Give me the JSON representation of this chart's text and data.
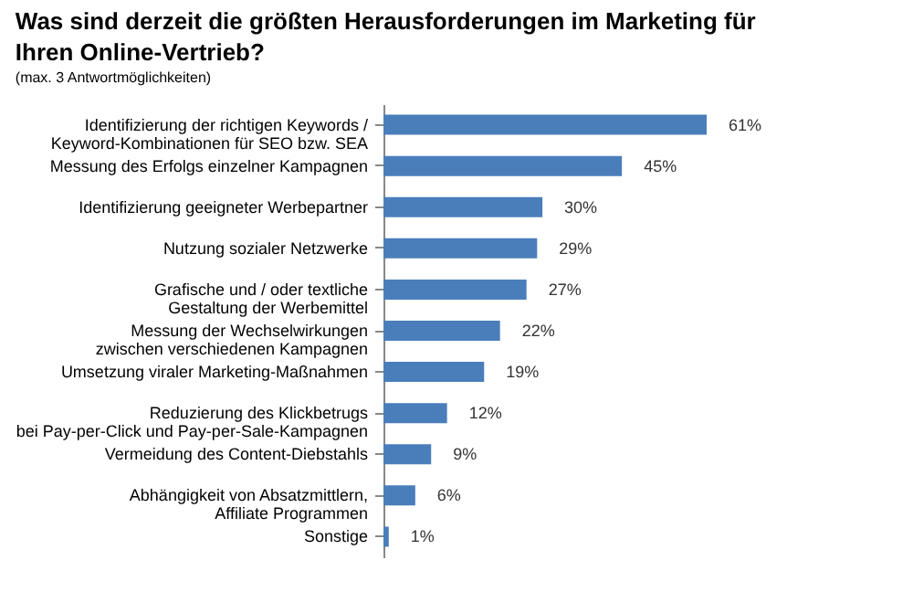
{
  "chart_data": {
    "type": "bar",
    "orientation": "horizontal",
    "title": "Was sind derzeit die größten Herausforderungen im Marketing für\nIhren Online-Vertrieb?",
    "subtitle": "(max. 3 Antwortmöglichkeiten)",
    "categories": [
      "Identifizierung der richtigen Keywords /\nKeyword-Kombinationen für SEO bzw. SEA",
      "Messung des Erfolgs einzelner Kampagnen",
      "Identifizierung geeigneter Werbepartner",
      "Nutzung sozialer Netzwerke",
      "Grafische und / oder textliche\nGestaltung der Werbemittel",
      "Messung der Wechselwirkungen\nzwischen verschiedenen Kampagnen",
      "Umsetzung viraler Marketing-Maßnahmen",
      "Reduzierung des Klickbetrugs\nbei Pay-per-Click und Pay-per-Sale-Kampagnen",
      "Vermeidung des Content-Diebstahls",
      "Abhängigkeit von Absatzmittlern,\nAffiliate Programmen",
      "Sonstige"
    ],
    "values": [
      61,
      45,
      30,
      29,
      27,
      22,
      19,
      12,
      9,
      6,
      1
    ],
    "value_labels": [
      "61%",
      "45%",
      "30%",
      "29%",
      "27%",
      "22%",
      "19%",
      "12%",
      "9%",
      "6%",
      "1%"
    ],
    "color": "#4a7ebb"
  }
}
